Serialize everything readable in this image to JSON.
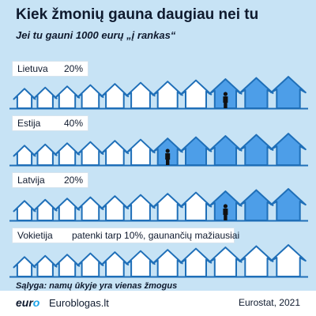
{
  "title": "Kiek žmonių gauna daugiau nei tu",
  "subtitle": "Jei tu gauni 1000 eurų „į rankas“",
  "condition": "Sąlyga: namų ūkyje yra vienas žmogus",
  "footer": {
    "logo_main": "eur",
    "logo_accent": "o",
    "site": "Euroblogas.lt",
    "source": "Eurostat, 2021"
  },
  "colors": {
    "background": "#c7e3f5",
    "house_outline": "#1f6fb8",
    "house_filled": "#4d9ee8",
    "house_empty": "#ffffff",
    "person": "#111111"
  },
  "chart_data": {
    "type": "pictogram",
    "houses_per_row": 11,
    "rows": [
      {
        "country": "Lietuva",
        "value": "20%",
        "filled_houses": 3
      },
      {
        "country": "Estija",
        "value": "40%",
        "filled_houses": 5
      },
      {
        "country": "Latvija",
        "value": "20%",
        "filled_houses": 3
      },
      {
        "country": "Vokietija",
        "value": "patenki tarp 10%, gaunančių mažiausiai",
        "filled_houses": 0
      }
    ]
  }
}
